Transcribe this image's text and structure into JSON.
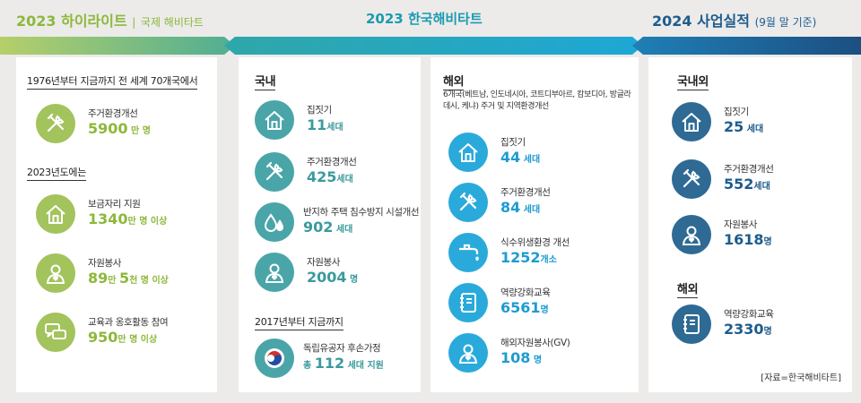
{
  "headers": {
    "left": {
      "title": "2023 하이라이트",
      "sep": "|",
      "sub": "국제 해비타트"
    },
    "middle": {
      "title": "2023 한국해비타트"
    },
    "right": {
      "title": "2024 사업실적",
      "sub": "(9월 말 기준)"
    }
  },
  "colors": {
    "green": "#8db83a",
    "teal": "#1a9bb0",
    "cyan": "#2aaadb",
    "navy": "#1d5c8c"
  },
  "panel1": {
    "section1": "1976년부터 지금까지 전 세계 70개국에서",
    "item1": {
      "icon": "tools-icon",
      "label": "주거환경개선",
      "value": "5900",
      "unit": " 만 명"
    },
    "section2": "2023년도에는",
    "item2": {
      "icon": "house-icon",
      "label": "보금자리 지원",
      "value": "1340",
      "unit": "만 명 이상"
    },
    "item3": {
      "icon": "volunteer-icon",
      "label": "자원봉사",
      "v1": "89",
      "u1": "만 ",
      "v2": "5",
      "u2": "천 명 이상"
    },
    "item4": {
      "icon": "speech-bubbles-icon",
      "label": "교육과 옹호활동 참여",
      "value": "950",
      "unit": "만 명 이상"
    }
  },
  "panel2": {
    "section1": "국내",
    "items": [
      {
        "icon": "house-icon",
        "label": "집짓기",
        "value": "11",
        "unit": "세대"
      },
      {
        "icon": "tools-icon",
        "label": "주거환경개선",
        "value": "425",
        "unit": "세대"
      },
      {
        "icon": "water-drops-icon",
        "label": "반지하 주택 침수방지 시설개선",
        "value": "902",
        "unit": " 세대"
      },
      {
        "icon": "volunteer-icon",
        "label": "자원봉사",
        "value": "2004",
        "unit": " 명"
      }
    ],
    "section2": "2017년부터 지금까지",
    "item5": {
      "icon": "taegeuk-flag-icon",
      "label": "독립유공자 후손가정",
      "pre": "총 ",
      "value": "112",
      "unit": " 세대 지원"
    }
  },
  "panel3": {
    "section": "해외",
    "desc": "6개국(베트남, 인도네시아, 코트디부아르, 캄보디아, 방글라데시, 케냐) 주거 및 지역환경개선",
    "items": [
      {
        "icon": "house-icon",
        "label": "집짓기",
        "value": "44",
        "unit": " 세대"
      },
      {
        "icon": "tools-icon",
        "label": "주거환경개선",
        "value": "84",
        "unit": " 세대"
      },
      {
        "icon": "faucet-icon",
        "label": "식수위생환경 개선",
        "value": "1252",
        "unit": "개소"
      },
      {
        "icon": "notebook-icon",
        "label": "역량강화교육",
        "value": "6561",
        "unit": "명"
      },
      {
        "icon": "volunteer-icon",
        "label": "해외자원봉사(GV)",
        "value": "108",
        "unit": " 명"
      }
    ]
  },
  "panel4": {
    "section1": "국내외",
    "items": [
      {
        "icon": "house-icon",
        "label": "집짓기",
        "value": "25",
        "unit": " 세대"
      },
      {
        "icon": "tools-icon",
        "label": "주거환경개선",
        "value": "552",
        "unit": "세대"
      },
      {
        "icon": "volunteer-icon",
        "label": "자원봉사",
        "value": "1618",
        "unit": "명"
      }
    ],
    "section2": "해외",
    "item4": {
      "icon": "notebook-icon",
      "label": "역량강화교육",
      "value": "2330",
      "unit": "명"
    },
    "source": "[자료=한국해비타트]"
  }
}
